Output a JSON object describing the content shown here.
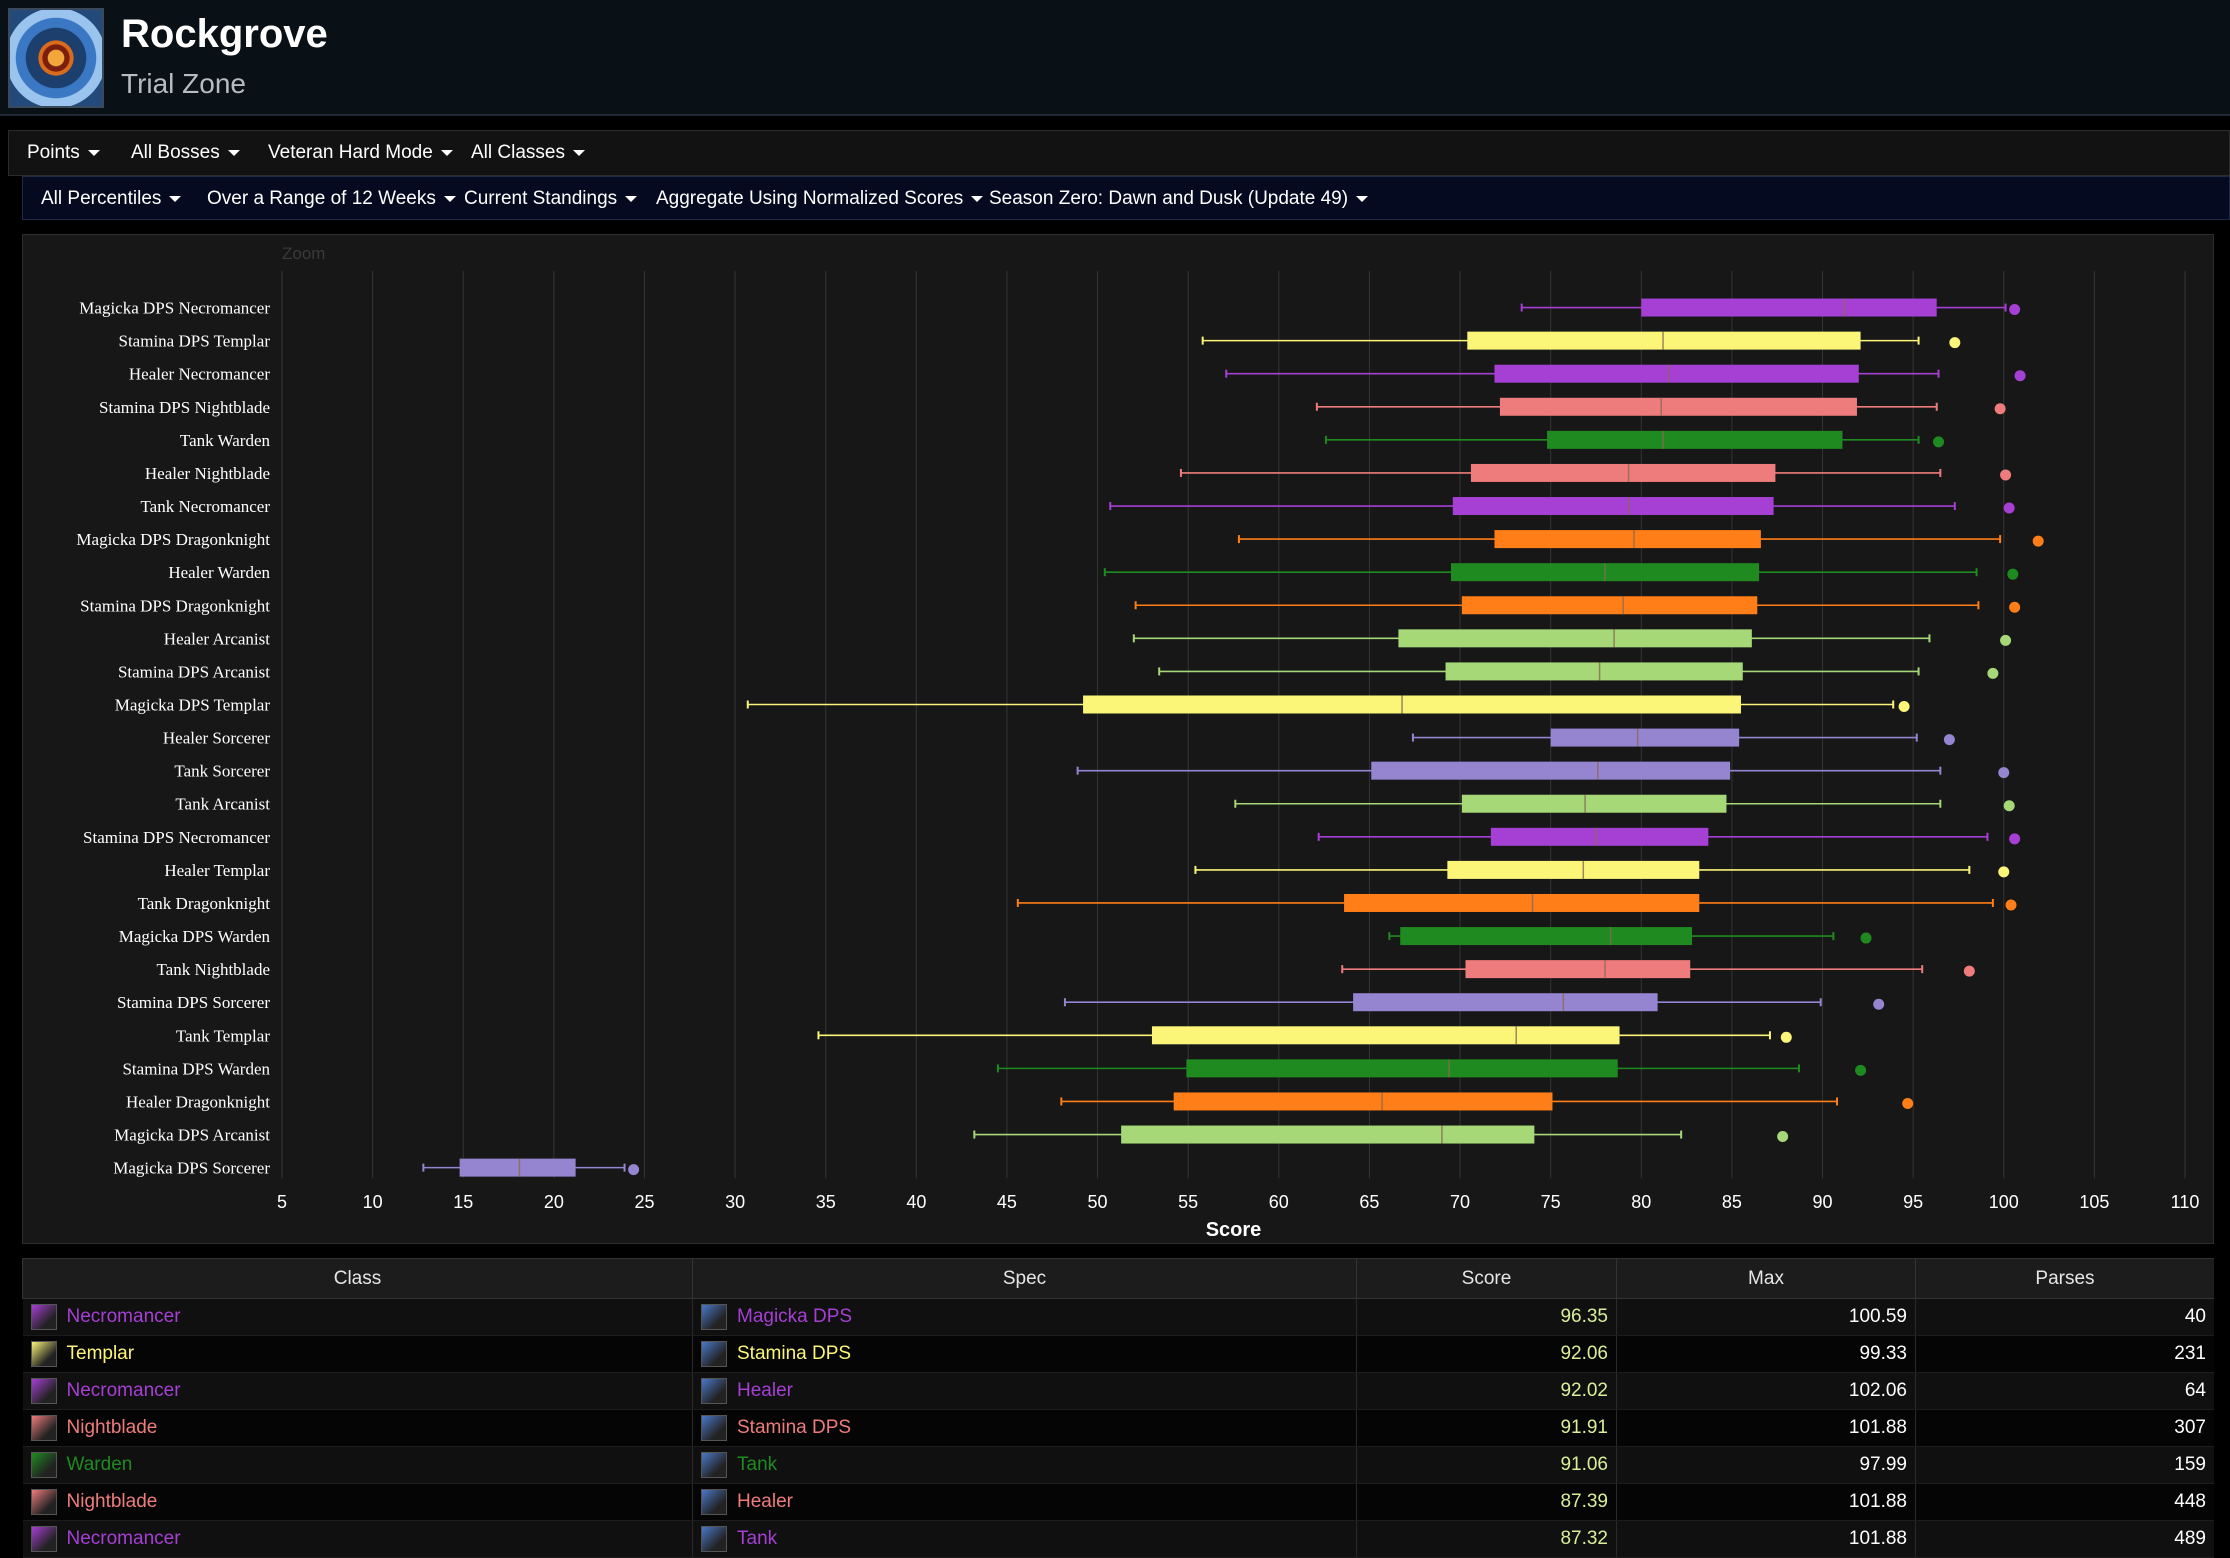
{
  "header": {
    "title": "Rockgrove",
    "subtitle": "Trial Zone"
  },
  "filters_row1": [
    "Points",
    "All Bosses",
    "Veteran Hard Mode",
    "All Classes"
  ],
  "filters_row2": [
    "All Percentiles",
    "Over a Range of 12 Weeks",
    "Current Standings",
    "Aggregate Using Normalized Scores",
    "Season Zero: Dawn and Dusk (Update 49)"
  ],
  "colors": {
    "Necromancer": "#a63fd4",
    "Templar": "#fbf578",
    "Nightblade": "#ee7c7c",
    "Warden": "#1f8a20",
    "Dragonknight": "#ff7e17",
    "Arcanist": "#a6d878",
    "Sorcerer": "#9584d0"
  },
  "chart_data": {
    "type": "boxplot",
    "zoom_label": "Zoom",
    "xlabel": "Score",
    "xlim": [
      5,
      110
    ],
    "xticks": [
      5,
      10,
      15,
      20,
      25,
      30,
      35,
      40,
      45,
      50,
      55,
      60,
      65,
      70,
      75,
      80,
      85,
      90,
      95,
      100,
      105,
      110
    ],
    "grid": true,
    "rows": [
      {
        "label": "Magicka DPS Necromancer",
        "class": "Necromancer",
        "min": 73.4,
        "q1": 80.0,
        "median": 91.2,
        "q3": 96.3,
        "max": 100.1,
        "outlier": 100.6
      },
      {
        "label": "Stamina DPS Templar",
        "class": "Templar",
        "min": 55.8,
        "q1": 70.4,
        "median": 81.2,
        "q3": 92.1,
        "max": 95.3,
        "outlier": 97.3
      },
      {
        "label": "Healer Necromancer",
        "class": "Necromancer",
        "min": 57.1,
        "q1": 71.9,
        "median": 81.5,
        "q3": 92.0,
        "max": 96.4,
        "outlier": 100.9
      },
      {
        "label": "Stamina DPS Nightblade",
        "class": "Nightblade",
        "min": 62.1,
        "q1": 72.2,
        "median": 81.1,
        "q3": 91.9,
        "max": 96.3,
        "outlier": 99.8
      },
      {
        "label": "Tank Warden",
        "class": "Warden",
        "min": 62.6,
        "q1": 74.8,
        "median": 81.2,
        "q3": 91.1,
        "max": 95.3,
        "outlier": 96.4
      },
      {
        "label": "Healer Nightblade",
        "class": "Nightblade",
        "min": 54.6,
        "q1": 70.6,
        "median": 79.3,
        "q3": 87.4,
        "max": 96.5,
        "outlier": 100.1
      },
      {
        "label": "Tank Necromancer",
        "class": "Necromancer",
        "min": 50.7,
        "q1": 69.6,
        "median": 79.3,
        "q3": 87.3,
        "max": 97.3,
        "outlier": 100.3
      },
      {
        "label": "Magicka DPS Dragonknight",
        "class": "Dragonknight",
        "min": 57.8,
        "q1": 71.9,
        "median": 79.6,
        "q3": 86.6,
        "max": 99.8,
        "outlier": 101.9
      },
      {
        "label": "Healer Warden",
        "class": "Warden",
        "min": 50.4,
        "q1": 69.5,
        "median": 78.0,
        "q3": 86.5,
        "max": 98.5,
        "outlier": 100.5
      },
      {
        "label": "Stamina DPS Dragonknight",
        "class": "Dragonknight",
        "min": 52.1,
        "q1": 70.1,
        "median": 79.0,
        "q3": 86.4,
        "max": 98.6,
        "outlier": 100.6
      },
      {
        "label": "Healer Arcanist",
        "class": "Arcanist",
        "min": 52.0,
        "q1": 66.6,
        "median": 78.5,
        "q3": 86.1,
        "max": 95.9,
        "outlier": 100.1
      },
      {
        "label": "Stamina DPS Arcanist",
        "class": "Arcanist",
        "min": 53.4,
        "q1": 69.2,
        "median": 77.7,
        "q3": 85.6,
        "max": 95.3,
        "outlier": 99.4
      },
      {
        "label": "Magicka DPS Templar",
        "class": "Templar",
        "min": 30.7,
        "q1": 49.2,
        "median": 66.8,
        "q3": 85.5,
        "max": 93.9,
        "outlier": 94.5
      },
      {
        "label": "Healer Sorcerer",
        "class": "Sorcerer",
        "min": 67.4,
        "q1": 75.0,
        "median": 79.8,
        "q3": 85.4,
        "max": 95.2,
        "outlier": 97.0
      },
      {
        "label": "Tank Sorcerer",
        "class": "Sorcerer",
        "min": 48.9,
        "q1": 65.1,
        "median": 77.6,
        "q3": 84.9,
        "max": 96.5,
        "outlier": 100.0
      },
      {
        "label": "Tank Arcanist",
        "class": "Arcanist",
        "min": 57.6,
        "q1": 70.1,
        "median": 76.9,
        "q3": 84.7,
        "max": 96.5,
        "outlier": 100.3
      },
      {
        "label": "Stamina DPS Necromancer",
        "class": "Necromancer",
        "min": 62.2,
        "q1": 71.7,
        "median": 77.5,
        "q3": 83.7,
        "max": 99.1,
        "outlier": 100.6
      },
      {
        "label": "Healer Templar",
        "class": "Templar",
        "min": 55.4,
        "q1": 69.3,
        "median": 76.8,
        "q3": 83.2,
        "max": 98.1,
        "outlier": 100.0
      },
      {
        "label": "Tank Dragonknight",
        "class": "Dragonknight",
        "min": 45.6,
        "q1": 63.6,
        "median": 74.0,
        "q3": 83.2,
        "max": 99.4,
        "outlier": 100.4
      },
      {
        "label": "Magicka DPS Warden",
        "class": "Warden",
        "min": 66.1,
        "q1": 66.7,
        "median": 78.3,
        "q3": 82.8,
        "max": 90.6,
        "outlier": 92.4
      },
      {
        "label": "Tank Nightblade",
        "class": "Nightblade",
        "min": 63.5,
        "q1": 70.3,
        "median": 78.0,
        "q3": 82.7,
        "max": 95.5,
        "outlier": 98.1
      },
      {
        "label": "Stamina DPS Sorcerer",
        "class": "Sorcerer",
        "min": 48.2,
        "q1": 64.1,
        "median": 75.7,
        "q3": 80.9,
        "max": 89.9,
        "outlier": 93.1
      },
      {
        "label": "Tank Templar",
        "class": "Templar",
        "min": 34.6,
        "q1": 53.0,
        "median": 73.1,
        "q3": 78.8,
        "max": 87.1,
        "outlier": 88.0
      },
      {
        "label": "Stamina DPS Warden",
        "class": "Warden",
        "min": 44.5,
        "q1": 54.9,
        "median": 69.4,
        "q3": 78.7,
        "max": 88.7,
        "outlier": 92.1
      },
      {
        "label": "Healer Dragonknight",
        "class": "Dragonknight",
        "min": 48.0,
        "q1": 54.2,
        "median": 65.7,
        "q3": 75.1,
        "max": 90.8,
        "outlier": 94.7
      },
      {
        "label": "Magicka DPS Arcanist",
        "class": "Arcanist",
        "min": 43.2,
        "q1": 51.3,
        "median": 69.0,
        "q3": 74.1,
        "max": 82.2,
        "outlier": 87.8
      },
      {
        "label": "Magicka DPS Sorcerer",
        "class": "Sorcerer",
        "min": 12.8,
        "q1": 14.8,
        "median": 18.1,
        "q3": 21.2,
        "max": 23.9,
        "outlier": 24.4
      }
    ]
  },
  "table": {
    "columns": [
      "Class",
      "Spec",
      "Score",
      "Max",
      "Parses"
    ],
    "rows": [
      {
        "class": "Necromancer",
        "spec": "Magicka DPS",
        "score": "96.35",
        "max": "100.59",
        "parses": "40",
        "color": "#a63fd4",
        "spec_icon": "magicka-dps-icon",
        "class_icon": "necromancer-icon"
      },
      {
        "class": "Templar",
        "spec": "Stamina DPS",
        "score": "92.06",
        "max": "99.33",
        "parses": "231",
        "color": "#fbf578",
        "spec_icon": "stamina-dps-icon",
        "class_icon": "templar-icon"
      },
      {
        "class": "Necromancer",
        "spec": "Healer",
        "score": "92.02",
        "max": "102.06",
        "parses": "64",
        "color": "#a63fd4",
        "spec_icon": "healer-icon",
        "class_icon": "necromancer-icon"
      },
      {
        "class": "Nightblade",
        "spec": "Stamina DPS",
        "score": "91.91",
        "max": "101.88",
        "parses": "307",
        "color": "#ee7c7c",
        "spec_icon": "stamina-dps-icon",
        "class_icon": "nightblade-icon"
      },
      {
        "class": "Warden",
        "spec": "Tank",
        "score": "91.06",
        "max": "97.99",
        "parses": "159",
        "color": "#1f8a20",
        "spec_icon": "tank-icon",
        "class_icon": "warden-icon"
      },
      {
        "class": "Nightblade",
        "spec": "Healer",
        "score": "87.39",
        "max": "101.88",
        "parses": "448",
        "color": "#ee7c7c",
        "spec_icon": "healer-icon",
        "class_icon": "nightblade-icon"
      },
      {
        "class": "Necromancer",
        "spec": "Tank",
        "score": "87.32",
        "max": "101.88",
        "parses": "489",
        "color": "#a63fd4",
        "spec_icon": "tank-icon",
        "class_icon": "necromancer-icon"
      }
    ]
  }
}
